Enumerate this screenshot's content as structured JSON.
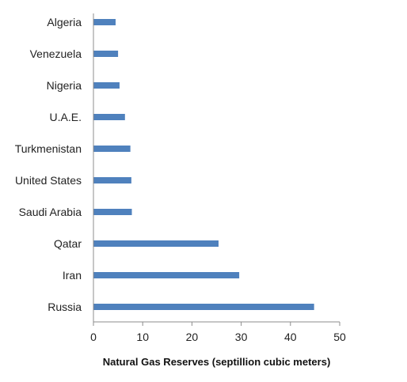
{
  "chart_data": {
    "type": "bar",
    "orientation": "horizontal",
    "categories": [
      "Algeria",
      "Venezuela",
      "Nigeria",
      "U.A.E.",
      "Turkmenistan",
      "United States",
      "Saudi Arabia",
      "Qatar",
      "Iran",
      "Russia"
    ],
    "values": [
      4.5,
      5.0,
      5.3,
      6.4,
      7.5,
      7.7,
      7.8,
      25.4,
      29.6,
      44.8
    ],
    "xlabel": "Natural Gas Reserves (septillion cubic meters)",
    "xlim": [
      0,
      50
    ],
    "xticks": [
      "0",
      "10",
      "20",
      "30",
      "40",
      "50"
    ],
    "grid": false,
    "legend": "none",
    "bar_color": "#4f81bd"
  }
}
